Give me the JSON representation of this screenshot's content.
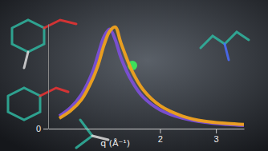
{
  "chart_data": {
    "type": "line",
    "x_label": "q (Å⁻¹)",
    "x": [
      0.2,
      0.4,
      0.6,
      0.8,
      0.9,
      1.0,
      1.1,
      1.2,
      1.3,
      1.5,
      1.7,
      2.0,
      2.4,
      2.8,
      3.2,
      3.5
    ],
    "series": [
      {
        "color": "#7b4fd6",
        "values": [
          0.12,
          0.2,
          0.33,
          0.55,
          0.72,
          0.88,
          0.95,
          0.85,
          0.68,
          0.45,
          0.3,
          0.18,
          0.1,
          0.06,
          0.04,
          0.03
        ]
      },
      {
        "color": "#f0a21e",
        "values": [
          0.1,
          0.17,
          0.28,
          0.48,
          0.62,
          0.8,
          0.93,
          0.97,
          0.82,
          0.55,
          0.37,
          0.22,
          0.12,
          0.07,
          0.05,
          0.04
        ]
      }
    ],
    "xlim": [
      0,
      3.5
    ],
    "xticks": [
      2,
      3
    ],
    "ylim": [
      0,
      1
    ],
    "yticks": [
      0
    ],
    "grid": false
  }
}
